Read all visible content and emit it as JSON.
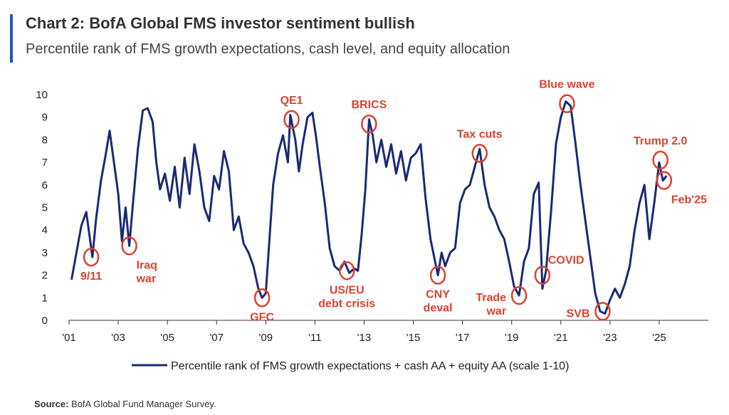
{
  "header": {
    "title": "Chart 2: BofA Global FMS investor sentiment bullish",
    "subtitle": "Percentile rank of FMS growth expectations, cash level, and equity allocation"
  },
  "source": {
    "label": "Source:",
    "text": "BofA Global Fund Manager Survey."
  },
  "colors": {
    "series": "#1b2a73",
    "annotation": "#d9432e",
    "accent_bar": "#1f58b8"
  },
  "chart_data": {
    "type": "line",
    "title": "",
    "xlabel": "",
    "ylabel": "",
    "ylim": [
      0,
      10
    ],
    "xlim": [
      2001,
      2027
    ],
    "grid": false,
    "legend_position": "bottom",
    "yticks": [
      "0",
      "1",
      "2",
      "3",
      "4",
      "5",
      "6",
      "7",
      "8",
      "9",
      "10"
    ],
    "xticks": [
      {
        "value": 2001,
        "label": "'01"
      },
      {
        "value": 2003,
        "label": "'03"
      },
      {
        "value": 2005,
        "label": "'05"
      },
      {
        "value": 2007,
        "label": "'07"
      },
      {
        "value": 2009,
        "label": "'09"
      },
      {
        "value": 2011,
        "label": "'11"
      },
      {
        "value": 2013,
        "label": "'13"
      },
      {
        "value": 2015,
        "label": "'15"
      },
      {
        "value": 2017,
        "label": "'17"
      },
      {
        "value": 2019,
        "label": "'19"
      },
      {
        "value": 2021,
        "label": "'21"
      },
      {
        "value": 2023,
        "label": "'23"
      },
      {
        "value": 2025,
        "label": "'25"
      }
    ],
    "series": [
      {
        "name": "Percentile rank of FMS growth expectations + cash AA + equity AA (scale 1-10)",
        "points": [
          [
            2001.1,
            1.8
          ],
          [
            2001.3,
            3.0
          ],
          [
            2001.5,
            4.2
          ],
          [
            2001.7,
            4.8
          ],
          [
            2001.85,
            3.6
          ],
          [
            2001.95,
            2.8
          ],
          [
            2002.1,
            4.5
          ],
          [
            2002.3,
            6.2
          ],
          [
            2002.5,
            7.4
          ],
          [
            2002.65,
            8.4
          ],
          [
            2002.8,
            7.2
          ],
          [
            2003.0,
            5.6
          ],
          [
            2003.15,
            3.5
          ],
          [
            2003.3,
            5.0
          ],
          [
            2003.45,
            3.3
          ],
          [
            2003.6,
            5.2
          ],
          [
            2003.8,
            7.6
          ],
          [
            2004.0,
            9.3
          ],
          [
            2004.2,
            9.4
          ],
          [
            2004.4,
            8.8
          ],
          [
            2004.55,
            7.0
          ],
          [
            2004.7,
            5.8
          ],
          [
            2004.9,
            6.5
          ],
          [
            2005.1,
            5.3
          ],
          [
            2005.3,
            6.8
          ],
          [
            2005.5,
            5.0
          ],
          [
            2005.7,
            7.2
          ],
          [
            2005.9,
            5.6
          ],
          [
            2006.1,
            7.8
          ],
          [
            2006.3,
            6.6
          ],
          [
            2006.5,
            5.0
          ],
          [
            2006.7,
            4.4
          ],
          [
            2006.9,
            6.4
          ],
          [
            2007.1,
            5.8
          ],
          [
            2007.3,
            7.5
          ],
          [
            2007.5,
            6.6
          ],
          [
            2007.7,
            4.0
          ],
          [
            2007.9,
            4.6
          ],
          [
            2008.1,
            3.4
          ],
          [
            2008.3,
            3.0
          ],
          [
            2008.5,
            2.4
          ],
          [
            2008.7,
            1.4
          ],
          [
            2008.85,
            1.0
          ],
          [
            2009.0,
            1.2
          ],
          [
            2009.1,
            2.8
          ],
          [
            2009.3,
            6.0
          ],
          [
            2009.5,
            7.4
          ],
          [
            2009.7,
            8.2
          ],
          [
            2009.9,
            7.0
          ],
          [
            2010.0,
            9.1
          ],
          [
            2010.2,
            8.0
          ],
          [
            2010.35,
            6.6
          ],
          [
            2010.5,
            7.8
          ],
          [
            2010.7,
            9.0
          ],
          [
            2010.9,
            9.2
          ],
          [
            2011.05,
            8.1
          ],
          [
            2011.2,
            6.8
          ],
          [
            2011.4,
            5.2
          ],
          [
            2011.6,
            3.2
          ],
          [
            2011.8,
            2.4
          ],
          [
            2012.0,
            2.2
          ],
          [
            2012.2,
            2.6
          ],
          [
            2012.4,
            2.1
          ],
          [
            2012.6,
            2.3
          ],
          [
            2012.75,
            2.2
          ],
          [
            2012.9,
            3.8
          ],
          [
            2013.05,
            5.8
          ],
          [
            2013.2,
            8.9
          ],
          [
            2013.35,
            8.2
          ],
          [
            2013.5,
            7.0
          ],
          [
            2013.7,
            8.0
          ],
          [
            2013.9,
            6.8
          ],
          [
            2014.1,
            7.8
          ],
          [
            2014.3,
            6.5
          ],
          [
            2014.5,
            7.5
          ],
          [
            2014.7,
            6.2
          ],
          [
            2014.9,
            7.2
          ],
          [
            2015.1,
            7.4
          ],
          [
            2015.3,
            7.8
          ],
          [
            2015.5,
            5.4
          ],
          [
            2015.7,
            3.6
          ],
          [
            2015.85,
            2.8
          ],
          [
            2016.0,
            2.0
          ],
          [
            2016.15,
            3.0
          ],
          [
            2016.3,
            2.4
          ],
          [
            2016.5,
            3.0
          ],
          [
            2016.7,
            3.2
          ],
          [
            2016.9,
            5.2
          ],
          [
            2017.1,
            5.8
          ],
          [
            2017.3,
            6.0
          ],
          [
            2017.5,
            6.8
          ],
          [
            2017.7,
            7.6
          ],
          [
            2017.9,
            6.0
          ],
          [
            2018.1,
            5.0
          ],
          [
            2018.3,
            4.6
          ],
          [
            2018.5,
            4.0
          ],
          [
            2018.7,
            3.6
          ],
          [
            2018.9,
            2.6
          ],
          [
            2019.1,
            1.5
          ],
          [
            2019.3,
            1.1
          ],
          [
            2019.5,
            2.6
          ],
          [
            2019.7,
            3.2
          ],
          [
            2019.9,
            5.6
          ],
          [
            2020.1,
            6.1
          ],
          [
            2020.25,
            1.4
          ],
          [
            2020.4,
            2.2
          ],
          [
            2020.6,
            4.8
          ],
          [
            2020.8,
            7.8
          ],
          [
            2021.0,
            9.0
          ],
          [
            2021.2,
            9.7
          ],
          [
            2021.4,
            9.5
          ],
          [
            2021.6,
            7.8
          ],
          [
            2021.8,
            6.0
          ],
          [
            2022.0,
            4.4
          ],
          [
            2022.2,
            2.8
          ],
          [
            2022.4,
            1.2
          ],
          [
            2022.6,
            0.4
          ],
          [
            2022.8,
            0.3
          ],
          [
            2023.0,
            0.9
          ],
          [
            2023.2,
            1.4
          ],
          [
            2023.4,
            1.0
          ],
          [
            2023.6,
            1.6
          ],
          [
            2023.8,
            2.4
          ],
          [
            2024.0,
            4.0
          ],
          [
            2024.2,
            5.2
          ],
          [
            2024.4,
            6.0
          ],
          [
            2024.6,
            3.6
          ],
          [
            2024.8,
            5.2
          ],
          [
            2025.0,
            7.0
          ],
          [
            2025.15,
            6.2
          ],
          [
            2025.3,
            6.4
          ]
        ]
      }
    ],
    "annotations": [
      {
        "label": "9/11",
        "x": 2001.9,
        "y": 2.8,
        "label_pos": "below"
      },
      {
        "label": "Iraq\nwar",
        "x": 2003.45,
        "y": 3.3,
        "label_pos": "below-right"
      },
      {
        "label": "GFC",
        "x": 2008.85,
        "y": 1.0,
        "label_pos": "below"
      },
      {
        "label": "QE1",
        "x": 2010.05,
        "y": 8.9,
        "label_pos": "above"
      },
      {
        "label": "US/EU\ndebt crisis",
        "x": 2012.3,
        "y": 2.2,
        "label_pos": "below"
      },
      {
        "label": "BRICS",
        "x": 2013.2,
        "y": 8.7,
        "label_pos": "above"
      },
      {
        "label": "CNY\ndeval",
        "x": 2016.0,
        "y": 2.0,
        "label_pos": "below"
      },
      {
        "label": "Tax cuts",
        "x": 2017.7,
        "y": 7.4,
        "label_pos": "above"
      },
      {
        "label": "Trade\nwar",
        "x": 2019.3,
        "y": 1.1,
        "label_pos": "left"
      },
      {
        "label": "COVID",
        "x": 2020.25,
        "y": 2.0,
        "label_pos": "above-right"
      },
      {
        "label": "Blue wave",
        "x": 2021.25,
        "y": 9.6,
        "label_pos": "above"
      },
      {
        "label": "SVB",
        "x": 2022.7,
        "y": 0.4,
        "label_pos": "left"
      },
      {
        "label": "Trump 2.0",
        "x": 2025.05,
        "y": 7.1,
        "label_pos": "above"
      },
      {
        "label": "Feb'25",
        "x": 2025.2,
        "y": 6.2,
        "label_pos": "below-right"
      }
    ]
  }
}
